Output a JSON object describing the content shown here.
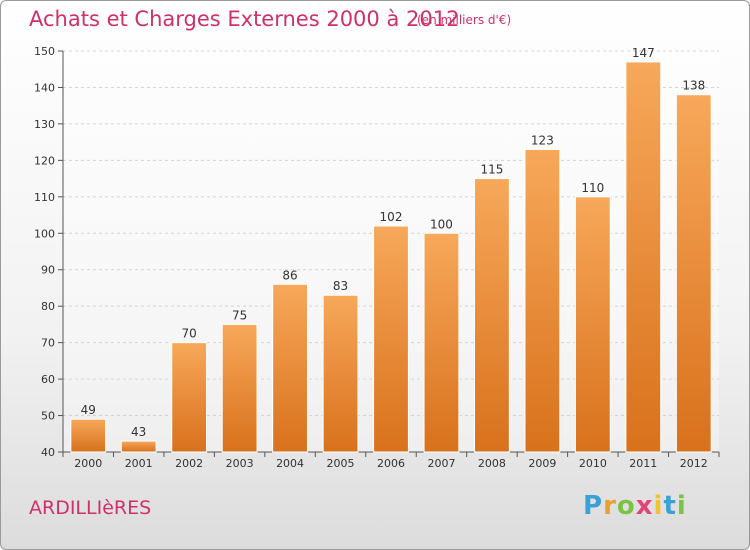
{
  "header": {
    "title": "Achats et Charges Externes 2000 à 2012",
    "subtitle": "(en milliers d'€)"
  },
  "footer": {
    "location": "ARDILLIèRES",
    "brand": "Proxiti",
    "brand_letters": [
      {
        "char": "P",
        "color": "#3aa0d8"
      },
      {
        "char": "r",
        "color": "#e8a030"
      },
      {
        "char": "o",
        "color": "#7cc243"
      },
      {
        "char": "x",
        "color": "#e2437a"
      },
      {
        "char": "i",
        "color": "#f2c230"
      },
      {
        "char": "t",
        "color": "#3aa0d8"
      },
      {
        "char": "i",
        "color": "#7cc243"
      }
    ]
  },
  "chart_data": {
    "type": "bar",
    "categories": [
      "2000",
      "2001",
      "2002",
      "2003",
      "2004",
      "2005",
      "2006",
      "2007",
      "2008",
      "2009",
      "2010",
      "2011",
      "2012"
    ],
    "values": [
      49,
      43,
      70,
      75,
      86,
      83,
      102,
      100,
      115,
      123,
      110,
      147,
      138
    ],
    "ylim": [
      40,
      150
    ],
    "yticks": [
      40,
      50,
      60,
      70,
      80,
      90,
      100,
      110,
      120,
      130,
      140,
      150
    ],
    "grid": true,
    "bar_color": "#f0902f",
    "title": "Achats et Charges Externes 2000 à 2012",
    "xlabel": "",
    "ylabel": ""
  }
}
